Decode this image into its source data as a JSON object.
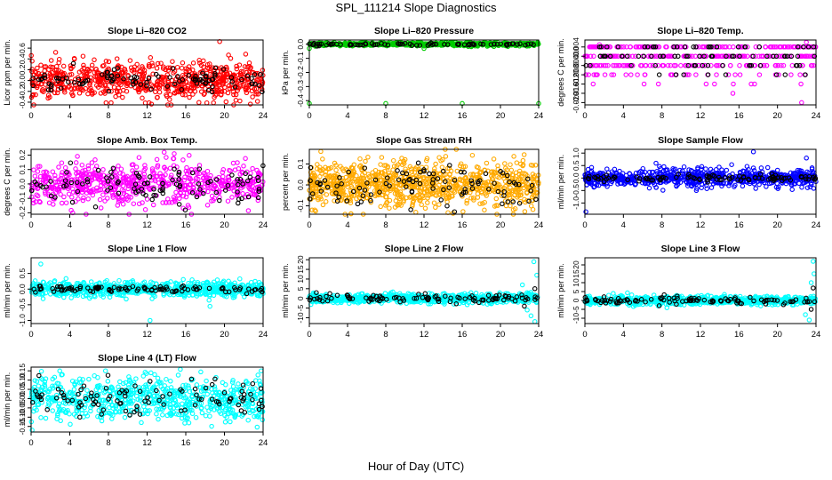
{
  "figure": {
    "title": "SPL_111214  Slope Diagnostics",
    "xlabel": "Hour of Day (UTC)"
  },
  "chart_data": [
    {
      "type": "scatter",
      "title": "Slope Li–820 CO2",
      "ylabel": "Licor ppm per min.",
      "xlim": [
        0,
        24
      ],
      "ylim": [
        -0.45,
        0.75
      ],
      "xticks": [
        "0",
        "4",
        "8",
        "12",
        "16",
        "20",
        "24"
      ],
      "yticks": [
        "-0.4",
        "-0.2",
        "0.0",
        "0.2",
        "0.4",
        "0.6"
      ],
      "ytick_values": [
        -0.4,
        -0.2,
        0.0,
        0.2,
        0.4,
        0.6
      ],
      "series": [
        {
          "color": "#ff0000",
          "spread": 0.17,
          "n": 700,
          "outliers": [
            [
              19.5,
              0.72
            ],
            [
              12.2,
              -0.41
            ]
          ]
        },
        {
          "color": "#000000",
          "spread": 0.1,
          "n": 100,
          "outliers": []
        }
      ]
    },
    {
      "type": "scatter",
      "title": "Slope Li–820 Pressure",
      "ylabel": "kPa per min.",
      "xlim": [
        0,
        24
      ],
      "ylim": [
        -0.43,
        0.03
      ],
      "xticks": [
        "0",
        "4",
        "8",
        "12",
        "16",
        "20",
        "24"
      ],
      "yticks": [
        "0.0",
        "-0.1",
        "-0.2",
        "-0.3",
        "-0.4"
      ],
      "ytick_values": [
        0.0,
        -0.1,
        -0.2,
        -0.3,
        -0.4
      ],
      "series": [
        {
          "color": "#00cc00",
          "spread": 0.006,
          "n": 600,
          "outliers": [
            [
              0.0,
              -0.42
            ],
            [
              8.0,
              -0.42
            ],
            [
              16.0,
              -0.42
            ],
            [
              24.0,
              -0.42
            ],
            [
              0.0,
              -0.03
            ],
            [
              12.0,
              -0.03
            ]
          ]
        },
        {
          "color": "#000000",
          "spread": 0.004,
          "n": 80,
          "outliers": []
        }
      ]
    },
    {
      "type": "scatter",
      "title": "Slope Li–820 Temp.",
      "ylabel": "degrees C per min.",
      "xlim": [
        0,
        24
      ],
      "ylim": [
        -0.021,
        0.007
      ],
      "xticks": [
        "0",
        "4",
        "8",
        "12",
        "16",
        "20",
        "24"
      ],
      "yticks": [
        "0.004",
        "0.000",
        "-0.004",
        "-0.008",
        "-0.012",
        "-0.016",
        "-0.020"
      ],
      "ytick_values": [
        0.004,
        0.0,
        -0.004,
        -0.008,
        -0.012,
        -0.016,
        -0.02
      ],
      "series": [
        {
          "color": "#ff00ff",
          "spread": 0.0,
          "n": 400,
          "levels": [
            -0.016,
            -0.012,
            -0.008,
            -0.004,
            0.0,
            0.004
          ],
          "outliers": [
            [
              23.0,
              0.006
            ],
            [
              1.5,
              0.005
            ],
            [
              22.5,
              -0.02
            ]
          ]
        },
        {
          "color": "#000000",
          "spread": 0.0,
          "n": 90,
          "levels": [
            -0.016,
            -0.012,
            -0.008,
            -0.004,
            0.0,
            0.004
          ],
          "outliers": []
        }
      ]
    },
    {
      "type": "scatter",
      "title": "Slope Amb. Box Temp.",
      "ylabel": "degrees C per min.",
      "xlim": [
        0,
        24
      ],
      "ylim": [
        -0.21,
        0.24
      ],
      "xticks": [
        "0",
        "4",
        "8",
        "12",
        "16",
        "20",
        "24"
      ],
      "yticks": [
        "-0.2",
        "-0.1",
        "0.0",
        "0.1",
        "0.2"
      ],
      "ytick_values": [
        -0.2,
        -0.1,
        0.0,
        0.1,
        0.2
      ],
      "series": [
        {
          "color": "#ff00ff",
          "spread": 0.07,
          "n": 650,
          "outliers": [
            [
              4.3,
              -0.2
            ],
            [
              14.8,
              0.21
            ]
          ]
        },
        {
          "color": "#000000",
          "spread": 0.06,
          "n": 100,
          "outliers": []
        }
      ]
    },
    {
      "type": "scatter",
      "title": "Slope Gas Stream RH",
      "ylabel": "percent per min.",
      "xlim": [
        0,
        24
      ],
      "ylim": [
        -0.14,
        0.17
      ],
      "xticks": [
        "0",
        "4",
        "8",
        "12",
        "16",
        "20",
        "24"
      ],
      "yticks": [
        "-0.1",
        "0.0",
        "0.1"
      ],
      "ytick_values": [
        -0.1,
        0.0,
        0.1
      ],
      "series": [
        {
          "color": "#ffaa00",
          "spread": 0.055,
          "n": 900,
          "outliers": [
            [
              1.2,
              0.16
            ],
            [
              0.3,
              -0.12
            ]
          ]
        },
        {
          "color": "#000000",
          "spread": 0.05,
          "n": 100,
          "outliers": []
        }
      ]
    },
    {
      "type": "scatter",
      "title": "Slope Sample Flow",
      "ylabel": "ml/min per min.",
      "xlim": [
        0,
        24
      ],
      "ylim": [
        -1.45,
        1.15
      ],
      "xticks": [
        "0",
        "4",
        "8",
        "12",
        "16",
        "20",
        "24"
      ],
      "yticks": [
        "-1.0",
        "-0.5",
        "0.0",
        "0.5",
        "1.0"
      ],
      "ytick_values": [
        -1.0,
        -0.5,
        0.0,
        0.5,
        1.0
      ],
      "series": [
        {
          "color": "#0000ff",
          "spread": 0.18,
          "n": 700,
          "outliers": [
            [
              0.1,
              -1.35
            ],
            [
              17.5,
              1.05
            ],
            [
              23.0,
              0.8
            ]
          ]
        },
        {
          "color": "#000000",
          "spread": 0.06,
          "n": 100,
          "outliers": []
        }
      ]
    },
    {
      "type": "scatter",
      "title": "Slope Line 1 Flow",
      "ylabel": "ml/min per min.",
      "xlim": [
        0,
        24
      ],
      "ylim": [
        -1.1,
        1.0
      ],
      "xticks": [
        "0",
        "4",
        "8",
        "12",
        "16",
        "20",
        "24"
      ],
      "yticks": [
        "-1.0",
        "-0.5",
        "0.0",
        "0.5"
      ],
      "ytick_values": [
        -1.0,
        -0.5,
        0.0,
        0.5
      ],
      "series": [
        {
          "color": "#00ffff",
          "spread": 0.12,
          "n": 700,
          "outliers": [
            [
              12.3,
              -1.0
            ],
            [
              1.0,
              0.8
            ],
            [
              18.5,
              -0.55
            ]
          ]
        },
        {
          "color": "#000000",
          "spread": 0.05,
          "n": 100,
          "outliers": []
        }
      ]
    },
    {
      "type": "scatter",
      "title": "Slope Line 2 Flow",
      "ylabel": "ml/min per min.",
      "xlim": [
        0,
        24
      ],
      "ylim": [
        -13,
        21
      ],
      "xticks": [
        "0",
        "4",
        "8",
        "12",
        "16",
        "20",
        "24"
      ],
      "yticks": [
        "-10",
        "-5",
        "0",
        "5",
        "10",
        "15",
        "20"
      ],
      "ytick_values": [
        -10,
        -5,
        0,
        5,
        10,
        15,
        20
      ],
      "series": [
        {
          "color": "#00ffff",
          "spread": 1.2,
          "n": 700,
          "outliers": [
            [
              23.5,
              19
            ],
            [
              23.8,
              12
            ],
            [
              23.2,
              -9
            ],
            [
              23.6,
              -12
            ],
            [
              22.3,
              7
            ],
            [
              22.8,
              -6
            ]
          ]
        },
        {
          "color": "#000000",
          "spread": 1.0,
          "n": 100,
          "outliers": [
            [
              23.6,
              5
            ],
            [
              22.5,
              -4
            ]
          ]
        }
      ]
    },
    {
      "type": "scatter",
      "title": "Slope Line 3 Flow",
      "ylabel": "ml/min per min.",
      "xlim": [
        0,
        24
      ],
      "ylim": [
        -13,
        24
      ],
      "xticks": [
        "0",
        "4",
        "8",
        "12",
        "16",
        "20",
        "24"
      ],
      "yticks": [
        "-10",
        "-5",
        "0",
        "5",
        "10",
        "15",
        "20"
      ],
      "ytick_values": [
        -10,
        -5,
        0,
        5,
        10,
        15,
        20
      ],
      "series": [
        {
          "color": "#00ffff",
          "spread": 1.2,
          "n": 700,
          "outliers": [
            [
              23.7,
              22
            ],
            [
              23.8,
              15
            ],
            [
              23.3,
              -11
            ],
            [
              22.9,
              -8
            ],
            [
              23.5,
              10
            ]
          ]
        },
        {
          "color": "#000000",
          "spread": 1.0,
          "n": 100,
          "outliers": [
            [
              23.7,
              7
            ],
            [
              23.5,
              -5
            ]
          ]
        }
      ]
    },
    {
      "type": "scatter",
      "title": "Slope Line 4 (LT) Flow",
      "ylabel": "ml/min per min.",
      "xlim": [
        0,
        24
      ],
      "ylim": [
        -0.18,
        0.17
      ],
      "xticks": [
        "0",
        "4",
        "8",
        "12",
        "16",
        "20",
        "24"
      ],
      "yticks": [
        "-0.15",
        "-0.10",
        "-0.05",
        "0.00",
        "0.05",
        "0.10",
        "0.15"
      ],
      "ytick_values": [
        -0.15,
        -0.1,
        -0.05,
        0.0,
        0.05,
        0.1,
        0.15
      ],
      "series": [
        {
          "color": "#00ffff",
          "spread": 0.055,
          "n": 700,
          "outliers": [
            [
              0.1,
              -0.17
            ],
            [
              7.7,
              0.15
            ],
            [
              23.8,
              0.15
            ]
          ]
        },
        {
          "color": "#000000",
          "spread": 0.045,
          "n": 100,
          "outliers": []
        }
      ]
    }
  ]
}
